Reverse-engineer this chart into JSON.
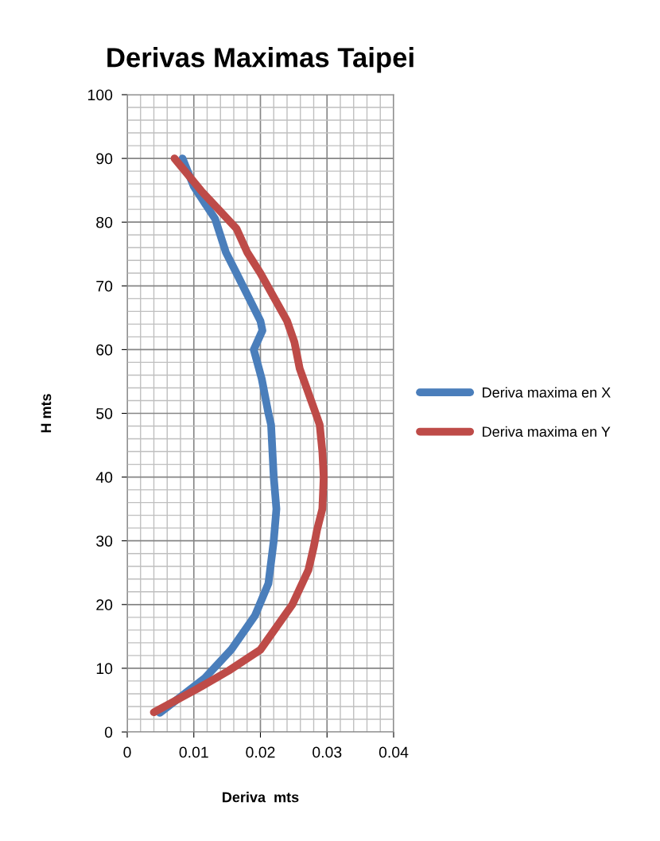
{
  "chart_data": {
    "type": "line",
    "title": "Derivas Maximas Taipei",
    "xlabel": "Deriva  mts",
    "ylabel": "H mts",
    "xlim": [
      0,
      0.04
    ],
    "xticks": [
      0,
      0.01,
      0.02,
      0.03,
      0.04
    ],
    "ylim": [
      0,
      100
    ],
    "yticks": [
      0,
      10,
      20,
      30,
      40,
      50,
      60,
      70,
      80,
      90,
      100
    ],
    "grid": true,
    "legend": "right",
    "marker": "none",
    "line_style": "solid",
    "series": [
      {
        "name": "Deriva maxima en X",
        "color": "#4a7ebb",
        "x": [
          0.0049,
          0.0116,
          0.0156,
          0.0192,
          0.0212,
          0.022,
          0.0224,
          0.022,
          0.0216,
          0.0212,
          0.0202,
          0.019,
          0.0203,
          0.02,
          0.0164,
          0.0148,
          0.0132,
          0.01,
          0.0083
        ],
        "values": [
          3,
          8.4,
          12.9,
          18.3,
          23.3,
          30,
          35,
          40,
          48.2,
          50,
          55.4,
          60,
          63,
          64.5,
          72,
          75.3,
          80.5,
          85.6,
          90
        ]
      },
      {
        "name": "Deriva maxima en Y",
        "color": "#be4b48",
        "x": [
          0.004,
          0.0104,
          0.0152,
          0.02,
          0.0248,
          0.0272,
          0.028,
          0.0285,
          0.0293,
          0.0295,
          0.0293,
          0.0289,
          0.0283,
          0.0259,
          0.0251,
          0.024,
          0.02,
          0.018,
          0.0164,
          0.0112,
          0.0071
        ],
        "values": [
          3.1,
          6.7,
          9.6,
          12.9,
          20,
          25.4,
          29,
          31.7,
          35,
          40,
          44,
          48.2,
          50,
          57,
          61.2,
          64.5,
          72,
          75.3,
          79,
          84.8,
          90
        ]
      }
    ]
  }
}
